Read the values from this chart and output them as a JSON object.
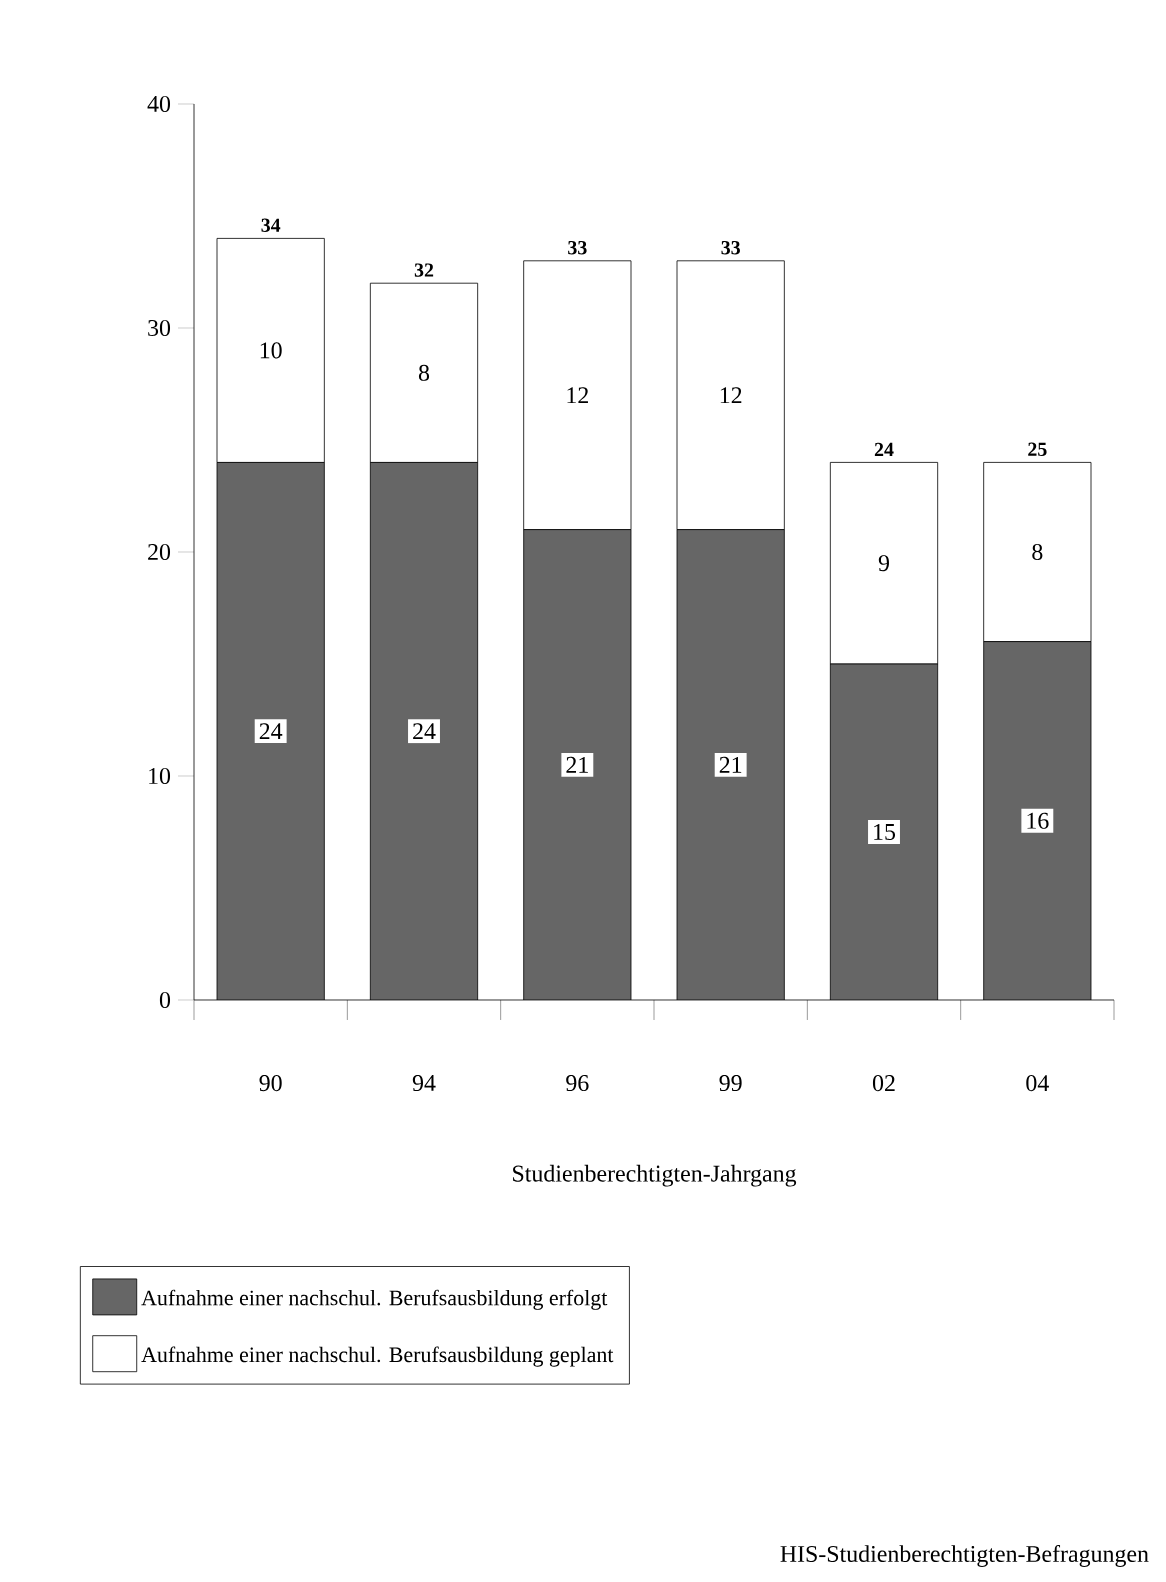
{
  "chart_data": {
    "type": "bar",
    "stacked": true,
    "categories": [
      "90",
      "94",
      "96",
      "99",
      "02",
      "04"
    ],
    "xlabel": "Studienberechtigten-Jahrgang",
    "series": [
      {
        "name": "Aufnahme einer nachschul. Berufsausbildung erfolgt",
        "color": "#666666",
        "values": [
          24,
          24,
          21,
          21,
          15,
          16
        ]
      },
      {
        "name": "Aufnahme einer nachschul. Berufsausbildung geplant",
        "color": "#ffffff",
        "values": [
          10,
          8,
          12,
          12,
          9,
          8
        ]
      }
    ],
    "ylim": [
      0,
      40
    ],
    "yticks": [
      0,
      10,
      20,
      30,
      40
    ],
    "totals": [
      "34",
      "32",
      "33",
      "33",
      "24",
      "25"
    ],
    "data_labels": true,
    "legend": "bottom",
    "annotations": [
      "HIS-Studienberechtigten-Befragungen"
    ]
  }
}
